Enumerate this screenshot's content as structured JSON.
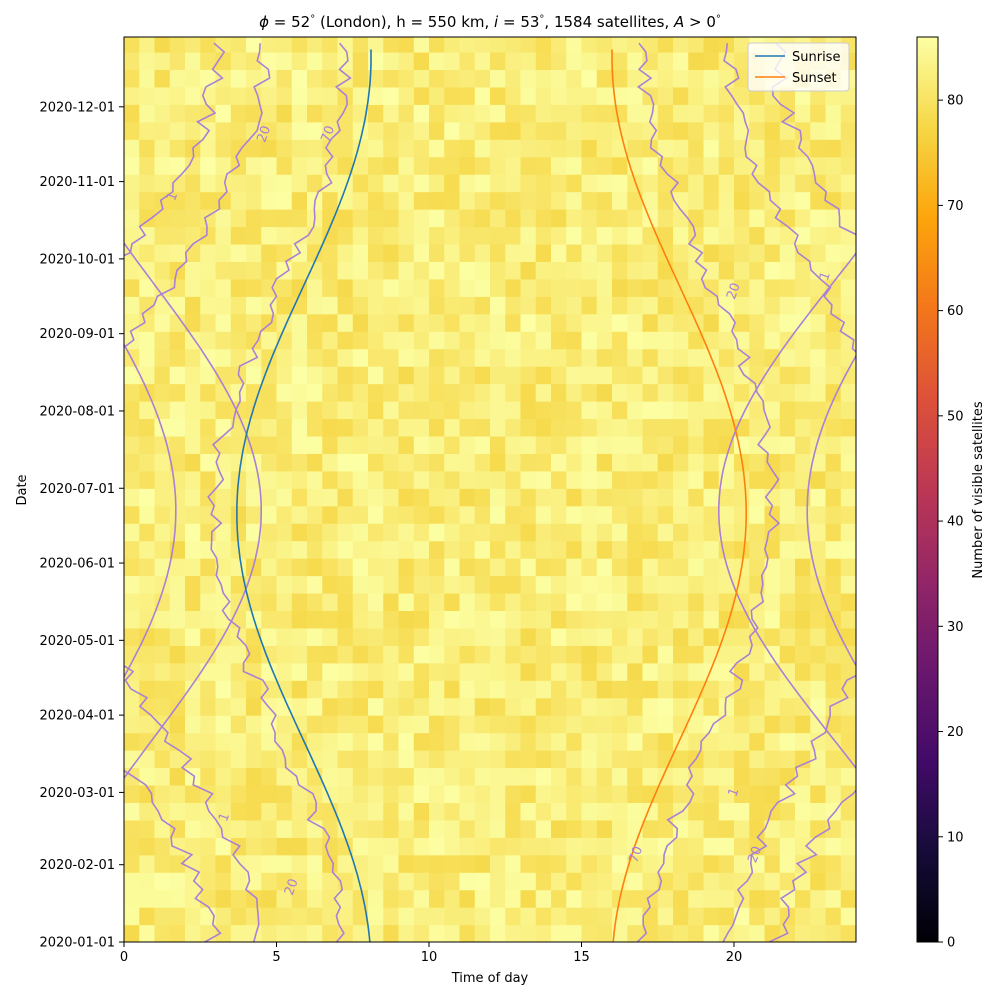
{
  "chart_data": {
    "type": "heatmap",
    "title": "ϕ = 52° (London), h = 550 km, i = 53°, 1584 satellites, A > 0°",
    "title_parts": {
      "phi": "ϕ",
      "phi_value": " = 52",
      "location": " (London), h = 550 km, ",
      "inc": "i",
      "inc_value": " = 53",
      "sats": ", 1584 satellites, ",
      "alt": "A",
      "alt_value": " > 0",
      "deg": "°"
    },
    "xlabel": "Time of day",
    "ylabel": "Date",
    "colorbar_label": "Number of visible satellites",
    "colormap": "inferno",
    "x_range": [
      0,
      24
    ],
    "y_range": [
      "2020-01-01",
      "2020-12-29"
    ],
    "z_range": [
      0,
      86
    ],
    "x_ticks": [
      0,
      5,
      10,
      15,
      20
    ],
    "y_ticks": [
      "2020-01-01",
      "2020-02-01",
      "2020-03-01",
      "2020-04-01",
      "2020-05-01",
      "2020-06-01",
      "2020-07-01",
      "2020-08-01",
      "2020-09-01",
      "2020-10-01",
      "2020-11-01",
      "2020-12-01"
    ],
    "colorbar_ticks": [
      0,
      10,
      20,
      30,
      40,
      50,
      60,
      70,
      80
    ],
    "grid": {
      "hours_per_cell": 0.5,
      "days_per_cell": 7
    },
    "legend": {
      "placement": "top-right",
      "entries": [
        {
          "name": "Sunrise",
          "color": "#1f77b4"
        },
        {
          "name": "Sunset",
          "color": "#ff7f0e"
        }
      ]
    },
    "contours": [
      {
        "level": 1,
        "label": "1",
        "color": "#a980d6"
      },
      {
        "level": 20,
        "label": "20",
        "color": "#a980d6"
      },
      {
        "level": 70,
        "label": "70",
        "color": "#a980d6"
      }
    ],
    "contour_label_marks": [
      {
        "label": "1",
        "date": "2020-02-20",
        "time": 3.3
      },
      {
        "label": "20",
        "date": "2020-01-23",
        "time": 5.5
      },
      {
        "label": "70",
        "date": "2020-02-05",
        "time": 16.8
      },
      {
        "label": "20",
        "date": "2020-02-05",
        "time": 20.7
      },
      {
        "label": "1",
        "date": "2020-03-01",
        "time": 20.0
      },
      {
        "label": "20",
        "date": "2020-09-18",
        "time": 20.0
      },
      {
        "label": "1",
        "date": "2020-09-24",
        "time": 23.0
      },
      {
        "label": "1",
        "date": "2020-10-26",
        "time": 1.6
      },
      {
        "label": "20",
        "date": "2020-11-20",
        "time": 4.6
      },
      {
        "label": "70",
        "date": "2020-11-20",
        "time": 6.7
      }
    ],
    "sunrise_sunset": {
      "sunrise_winter": 8.1,
      "sunrise_summer": 3.7,
      "sunset_winter": 16.0,
      "sunset_summer": 20.4,
      "solstice_day_of_year": 172,
      "curve_end_date": "2020-12-24"
    },
    "edges": {
      "e70": {
        "winter_morning": 7.3,
        "summer_morning": 3.0,
        "winter_evening": 17.1,
        "summer_evening": 21.3
      },
      "e20": {
        "winter_morning": 4.6,
        "summer_morning": -1.6,
        "winter_evening": 19.9,
        "summer_evening": 25.7
      },
      "e1": {
        "winter_morning": 3.0,
        "summer_morning": -4.5,
        "winter_evening": 21.4,
        "summer_evening": 28.5
      }
    },
    "plateau_value": 82
  }
}
